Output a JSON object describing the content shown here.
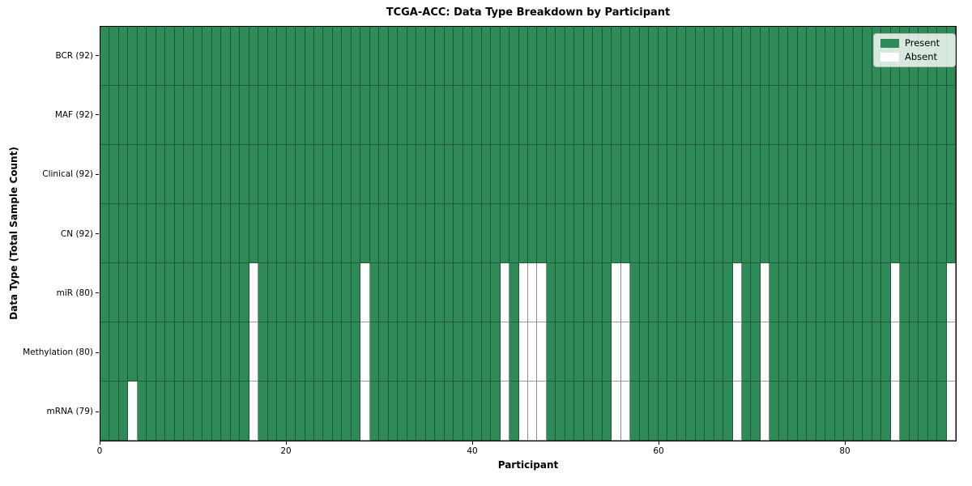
{
  "title": "TCGA-ACC: Data Type Breakdown by Participant",
  "xlabel": "Participant",
  "ylabel": "Data Type (Total Sample Count)",
  "legend": {
    "entries": [
      {
        "label": "Present",
        "color": "#2e8b57"
      },
      {
        "label": "Absent",
        "color": "#ffffff"
      }
    ]
  },
  "chart_data": {
    "type": "heatmap",
    "n_participants": 92,
    "x_ticks": [
      0,
      20,
      40,
      60,
      80
    ],
    "colors": {
      "present": "#2e8b57",
      "absent": "#ffffff"
    },
    "legend_position": "upper right",
    "rows": [
      {
        "label": "BCR (92)",
        "data_type": "BCR",
        "present_count": 92,
        "absent_participants": []
      },
      {
        "label": "MAF (92)",
        "data_type": "MAF",
        "present_count": 92,
        "absent_participants": []
      },
      {
        "label": "Clinical (92)",
        "data_type": "Clinical",
        "present_count": 92,
        "absent_participants": []
      },
      {
        "label": "CN (92)",
        "data_type": "CN",
        "present_count": 92,
        "absent_participants": []
      },
      {
        "label": "miR (80)",
        "data_type": "miR",
        "present_count": 80,
        "absent_participants": [
          16,
          28,
          43,
          45,
          46,
          47,
          55,
          56,
          68,
          71,
          85,
          91
        ]
      },
      {
        "label": "Methylation (80)",
        "data_type": "Methylation",
        "present_count": 80,
        "absent_participants": [
          16,
          28,
          43,
          45,
          46,
          47,
          55,
          56,
          68,
          71,
          85,
          91
        ]
      },
      {
        "label": "mRNA (79)",
        "data_type": "mRNA",
        "present_count": 79,
        "absent_participants": [
          3,
          16,
          28,
          43,
          45,
          46,
          47,
          55,
          56,
          68,
          71,
          85,
          91
        ]
      }
    ]
  }
}
